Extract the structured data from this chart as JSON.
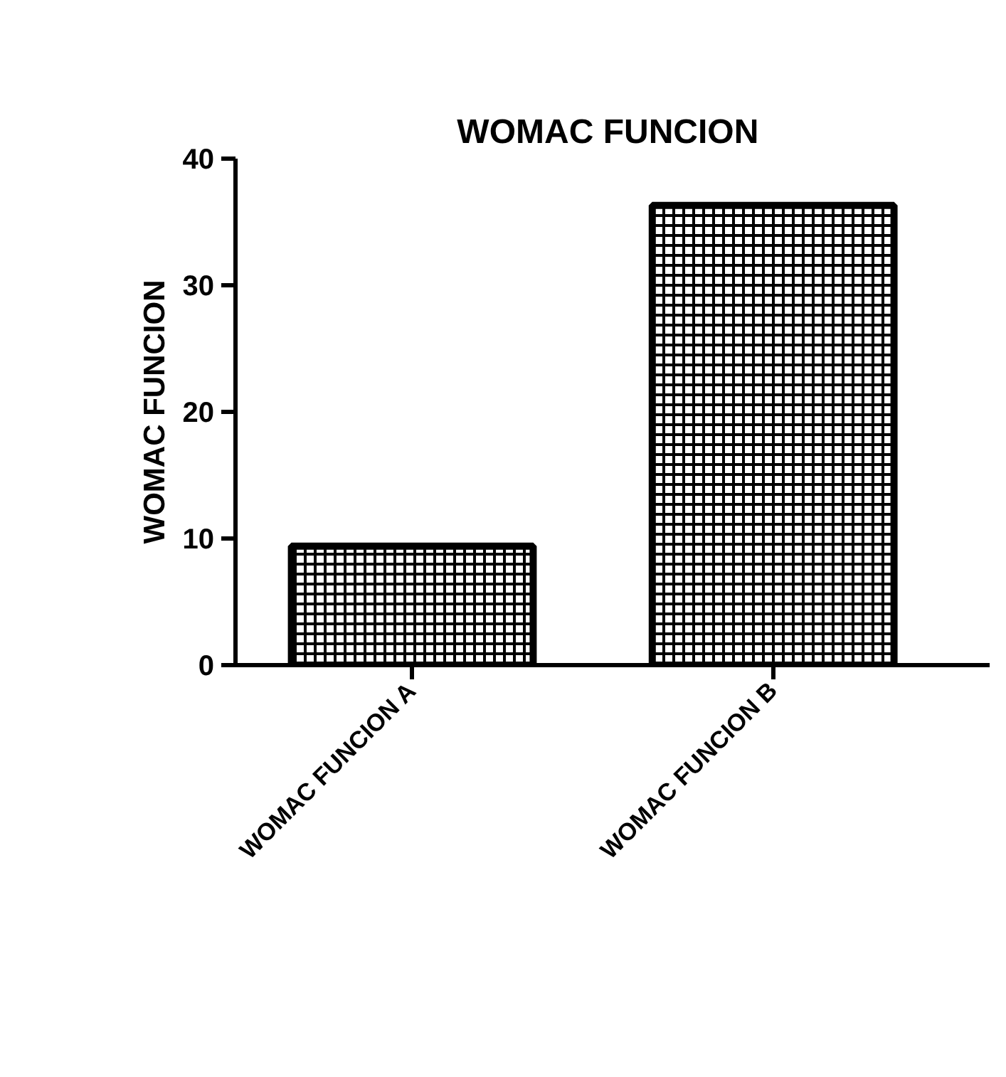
{
  "chart_data": {
    "type": "bar",
    "title": "WOMAC  FUNCION",
    "ylabel": "WOMAC FUNCION",
    "categories": [
      "WOMAC FUNCION A",
      "WOMAC FUNCION B"
    ],
    "values": [
      9.4,
      36.3
    ],
    "colors": [
      "#000000",
      "#000000"
    ],
    "ylim": [
      0,
      40
    ],
    "yticks": [
      0,
      10,
      20,
      30,
      40
    ],
    "grid": false
  }
}
